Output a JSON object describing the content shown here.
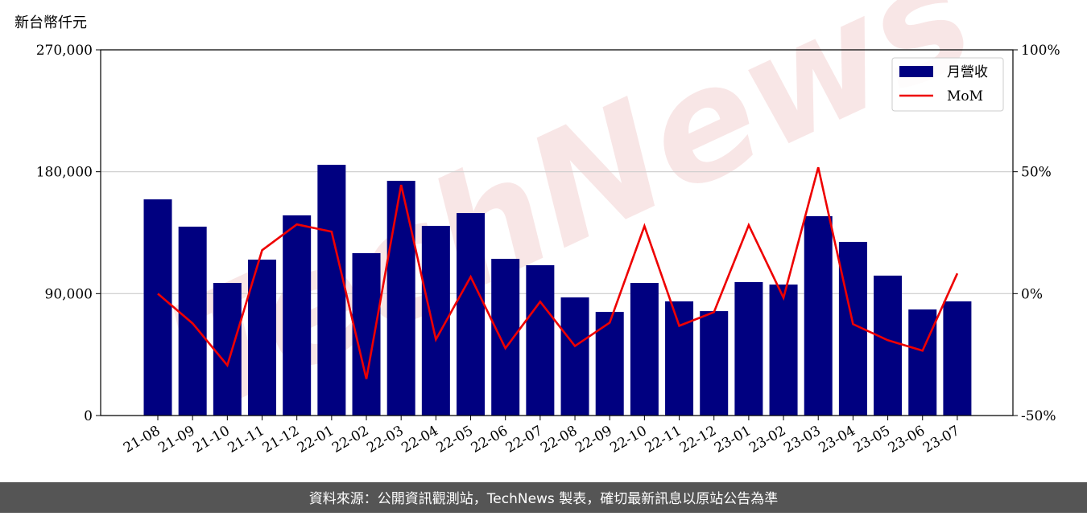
{
  "chart_data": {
    "type": "bar_line",
    "y_label": "新台幣仟元",
    "watermark": "TechNews",
    "footer": "資料來源：公開資訊觀測站，TechNews 製表，確切最新訊息以原站公告為準",
    "categories": [
      "21-08",
      "21-09",
      "21-10",
      "21-11",
      "21-12",
      "22-01",
      "22-02",
      "22-03",
      "22-04",
      "22-05",
      "22-06",
      "22-07",
      "22-08",
      "22-09",
      "22-10",
      "22-11",
      "22-12",
      "23-01",
      "23-02",
      "23-03",
      "23-04",
      "23-05",
      "23-06",
      "23-07"
    ],
    "series": [
      {
        "name": "月營收",
        "type": "bar",
        "color": "#000080",
        "values": [
          159600,
          139450,
          97900,
          115100,
          147800,
          185100,
          119900,
          173300,
          140000,
          149500,
          115700,
          111000,
          87200,
          76500,
          97900,
          84300,
          77100,
          98500,
          96700,
          147200,
          128200,
          103300,
          78300,
          84300
        ]
      },
      {
        "name": "MoM",
        "type": "line",
        "axis": "y2",
        "color": "#ee0000",
        "values": [
          0,
          -12.2,
          -29.4,
          17.8,
          28.4,
          25.4,
          -35.0,
          44.6,
          -18.8,
          6.9,
          -22.4,
          -3.3,
          -21.5,
          -11.9,
          27.7,
          -13.2,
          -7.6,
          28.1,
          -1.7,
          51.8,
          -12.5,
          -19.1,
          -23.4,
          8.3
        ]
      }
    ],
    "ylim": [
      0,
      270000
    ],
    "yticks": [
      0,
      {
        "value": 90000,
        "label": "90,000"
      },
      {
        "value": 180000,
        "label": "180,000"
      },
      {
        "value": 270000,
        "label": "270,000"
      }
    ],
    "y2lim": [
      -50,
      100
    ],
    "y2ticks": [
      {
        "value": -50,
        "label": "-50%"
      },
      {
        "value": 0,
        "label": "0%"
      },
      {
        "value": 50,
        "label": "50%"
      },
      {
        "value": 100,
        "label": "100%"
      }
    ],
    "grid": true,
    "legend": "upper right"
  }
}
